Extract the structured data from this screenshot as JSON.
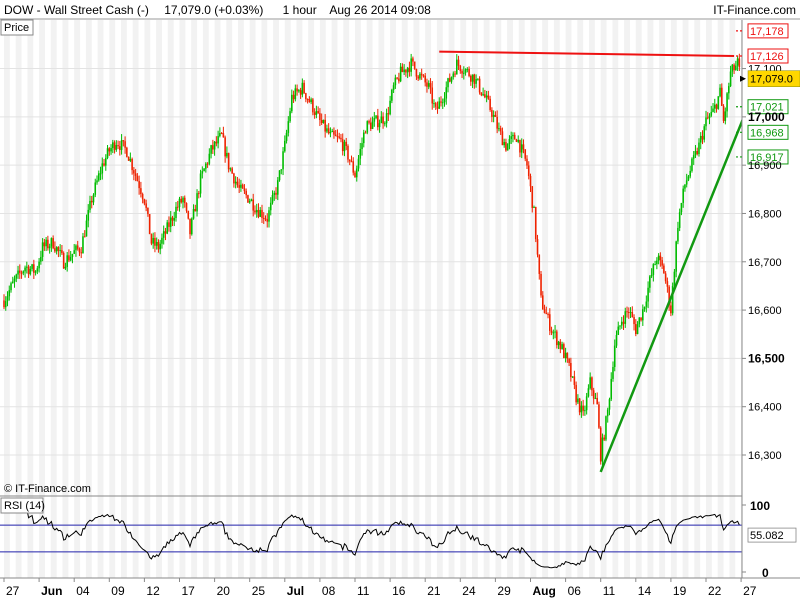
{
  "header": {
    "symbol": "DOW - Wall Street Cash (-)",
    "quote": "17,079.0 (+0.03%)",
    "timeframe": "1 hour",
    "datetime": "Aug 26 2014 09:08",
    "brand": "IT-Finance.com"
  },
  "price_tab": "Price",
  "watermark": "© IT-Finance.com",
  "rsi_tab": "RSI (14)",
  "colors": {
    "up": "#00bb00",
    "down": "#ee2200",
    "resistance": "#ee1111",
    "trendline": "#119911",
    "rsi_line": "#000000",
    "rsi_bands": "#2222aa",
    "current_bg": "#ffd700",
    "stripe": "#f2f2f2"
  },
  "chart_data": [
    {
      "type": "candlestick",
      "y_axis": {
        "ticks": [
          {
            "value": 17178,
            "label": "17,178",
            "style": "red"
          },
          {
            "value": 17126,
            "label": "17,126",
            "style": "red"
          },
          {
            "value": 17100,
            "label": "17,100",
            "style": "plain"
          },
          {
            "value": 17079,
            "label": "17,079.0",
            "style": "current"
          },
          {
            "value": 17021,
            "label": "17,021",
            "style": "green"
          },
          {
            "value": 17000,
            "label": "17,000",
            "style": "bold"
          },
          {
            "value": 16968,
            "label": "16,968",
            "style": "green"
          },
          {
            "value": 16917,
            "label": "16,917",
            "style": "green"
          },
          {
            "value": 16900,
            "label": "16,900",
            "style": "plain"
          },
          {
            "value": 16800,
            "label": "16,800",
            "style": "plain"
          },
          {
            "value": 16700,
            "label": "16,700",
            "style": "plain"
          },
          {
            "value": 16600,
            "label": "16,600",
            "style": "plain"
          },
          {
            "value": 16500,
            "label": "16,500",
            "style": "bold"
          },
          {
            "value": 16400,
            "label": "16,400",
            "style": "plain"
          },
          {
            "value": 16300,
            "label": "16,300",
            "style": "plain"
          }
        ]
      },
      "x_axis": {
        "ticks": [
          {
            "index": 0,
            "label": "27",
            "bold": false
          },
          {
            "index": 1,
            "label": "Jun",
            "bold": true
          },
          {
            "index": 2,
            "label": "04",
            "bold": false
          },
          {
            "index": 3,
            "label": "09",
            "bold": false
          },
          {
            "index": 4,
            "label": "12",
            "bold": false
          },
          {
            "index": 5,
            "label": "17",
            "bold": false
          },
          {
            "index": 6,
            "label": "20",
            "bold": false
          },
          {
            "index": 7,
            "label": "25",
            "bold": false
          },
          {
            "index": 8,
            "label": "Jul",
            "bold": true
          },
          {
            "index": 9,
            "label": "08",
            "bold": false
          },
          {
            "index": 10,
            "label": "11",
            "bold": false
          },
          {
            "index": 11,
            "label": "16",
            "bold": false
          },
          {
            "index": 12,
            "label": "21",
            "bold": false
          },
          {
            "index": 13,
            "label": "24",
            "bold": false
          },
          {
            "index": 14,
            "label": "29",
            "bold": false
          },
          {
            "index": 15,
            "label": "Aug",
            "bold": true
          },
          {
            "index": 16,
            "label": "06",
            "bold": false
          },
          {
            "index": 17,
            "label": "11",
            "bold": false
          },
          {
            "index": 18,
            "label": "14",
            "bold": false
          },
          {
            "index": 19,
            "label": "19",
            "bold": false
          },
          {
            "index": 20,
            "label": "22",
            "bold": false
          },
          {
            "index": 21,
            "label": "27",
            "bold": false
          }
        ]
      },
      "close_path": [
        {
          "t": 0,
          "v": 16620
        },
        {
          "t": 0.3,
          "v": 16660
        },
        {
          "t": 0.6,
          "v": 16690
        },
        {
          "t": 0.9,
          "v": 16680
        },
        {
          "t": 1.1,
          "v": 16730
        },
        {
          "t": 1.4,
          "v": 16740
        },
        {
          "t": 1.7,
          "v": 16700
        },
        {
          "t": 2.0,
          "v": 16720
        },
        {
          "t": 2.2,
          "v": 16730
        },
        {
          "t": 2.5,
          "v": 16830
        },
        {
          "t": 2.8,
          "v": 16900
        },
        {
          "t": 3.0,
          "v": 16930
        },
        {
          "t": 3.2,
          "v": 16950
        },
        {
          "t": 3.5,
          "v": 16930
        },
        {
          "t": 3.8,
          "v": 16870
        },
        {
          "t": 4.0,
          "v": 16830
        },
        {
          "t": 4.2,
          "v": 16740
        },
        {
          "t": 4.4,
          "v": 16730
        },
        {
          "t": 4.6,
          "v": 16760
        },
        {
          "t": 4.9,
          "v": 16810
        },
        {
          "t": 5.1,
          "v": 16830
        },
        {
          "t": 5.3,
          "v": 16760
        },
        {
          "t": 5.6,
          "v": 16870
        },
        {
          "t": 5.9,
          "v": 16930
        },
        {
          "t": 6.2,
          "v": 16960
        },
        {
          "t": 6.4,
          "v": 16900
        },
        {
          "t": 6.7,
          "v": 16850
        },
        {
          "t": 7.0,
          "v": 16830
        },
        {
          "t": 7.2,
          "v": 16810
        },
        {
          "t": 7.5,
          "v": 16790
        },
        {
          "t": 7.8,
          "v": 16860
        },
        {
          "t": 8.0,
          "v": 16940
        },
        {
          "t": 8.2,
          "v": 17040
        },
        {
          "t": 8.5,
          "v": 17060
        },
        {
          "t": 8.8,
          "v": 17020
        },
        {
          "t": 9.0,
          "v": 16990
        },
        {
          "t": 9.3,
          "v": 16960
        },
        {
          "t": 9.6,
          "v": 16950
        },
        {
          "t": 9.8,
          "v": 16920
        },
        {
          "t": 10.0,
          "v": 16880
        },
        {
          "t": 10.3,
          "v": 16980
        },
        {
          "t": 10.6,
          "v": 16990
        },
        {
          "t": 10.9,
          "v": 17000
        },
        {
          "t": 11.1,
          "v": 17060
        },
        {
          "t": 11.3,
          "v": 17090
        },
        {
          "t": 11.6,
          "v": 17110
        },
        {
          "t": 11.9,
          "v": 17080
        },
        {
          "t": 12.1,
          "v": 17060
        },
        {
          "t": 12.3,
          "v": 17010
        },
        {
          "t": 12.6,
          "v": 17060
        },
        {
          "t": 12.9,
          "v": 17110
        },
        {
          "t": 13.1,
          "v": 17100
        },
        {
          "t": 13.4,
          "v": 17080
        },
        {
          "t": 13.7,
          "v": 17040
        },
        {
          "t": 13.9,
          "v": 17010
        },
        {
          "t": 14.1,
          "v": 16970
        },
        {
          "t": 14.3,
          "v": 16940
        },
        {
          "t": 14.6,
          "v": 16960
        },
        {
          "t": 14.9,
          "v": 16900
        },
        {
          "t": 15.1,
          "v": 16800
        },
        {
          "t": 15.3,
          "v": 16620
        },
        {
          "t": 15.6,
          "v": 16560
        },
        {
          "t": 15.9,
          "v": 16520
        },
        {
          "t": 16.1,
          "v": 16480
        },
        {
          "t": 16.3,
          "v": 16420
        },
        {
          "t": 16.5,
          "v": 16380
        },
        {
          "t": 16.7,
          "v": 16450
        },
        {
          "t": 16.9,
          "v": 16400
        },
        {
          "t": 17.0,
          "v": 16300
        },
        {
          "t": 17.2,
          "v": 16390
        },
        {
          "t": 17.4,
          "v": 16530
        },
        {
          "t": 17.6,
          "v": 16580
        },
        {
          "t": 17.8,
          "v": 16600
        },
        {
          "t": 18.0,
          "v": 16560
        },
        {
          "t": 18.2,
          "v": 16600
        },
        {
          "t": 18.4,
          "v": 16660
        },
        {
          "t": 18.6,
          "v": 16710
        },
        {
          "t": 18.8,
          "v": 16680
        },
        {
          "t": 19.0,
          "v": 16600
        },
        {
          "t": 19.2,
          "v": 16780
        },
        {
          "t": 19.4,
          "v": 16860
        },
        {
          "t": 19.6,
          "v": 16900
        },
        {
          "t": 19.8,
          "v": 16940
        },
        {
          "t": 20.0,
          "v": 16990
        },
        {
          "t": 20.2,
          "v": 17010
        },
        {
          "t": 20.4,
          "v": 17050
        },
        {
          "t": 20.5,
          "v": 16990
        },
        {
          "t": 20.7,
          "v": 17090
        },
        {
          "t": 20.9,
          "v": 17110
        },
        {
          "t": 21.0,
          "v": 17080
        }
      ],
      "resistance_line": {
        "t1": 12.4,
        "v1": 17135,
        "t2": 20.8,
        "v2": 17126
      },
      "trend_line": {
        "t1": 17.0,
        "v1": 16265,
        "t2": 21.3,
        "v2": 17040
      },
      "rsi": {
        "label": "RSI (14)",
        "ticks": [
          {
            "value": 100,
            "label": "100"
          },
          {
            "value": 0,
            "label": "0"
          }
        ],
        "overbought": 70,
        "oversold": 30,
        "current": {
          "value": 55.082,
          "label": "55.082"
        }
      }
    }
  ]
}
